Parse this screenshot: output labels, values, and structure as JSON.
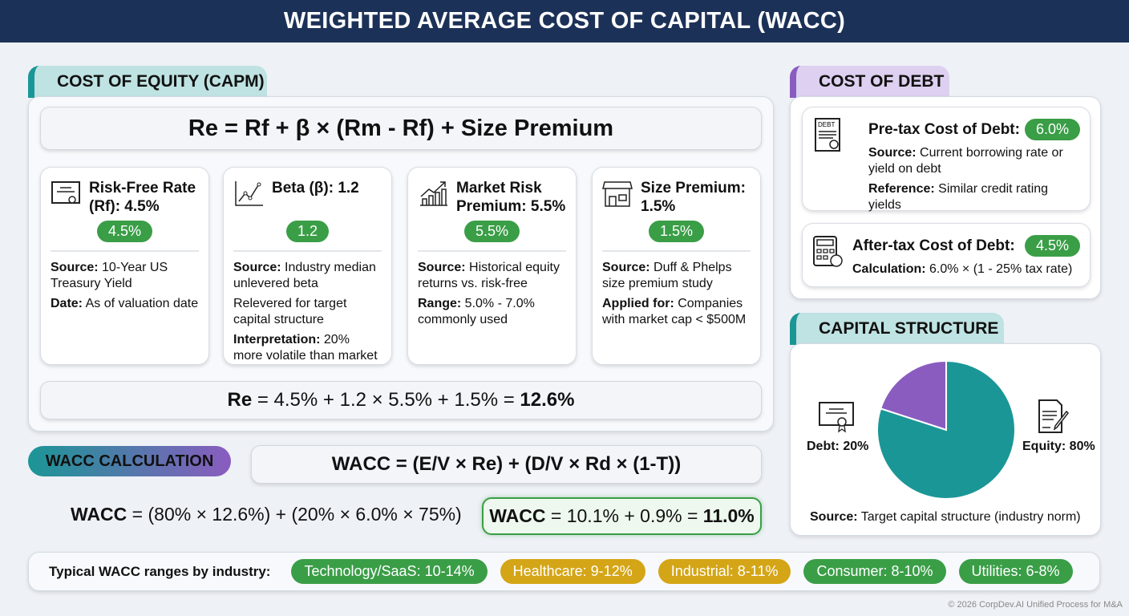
{
  "title": "WEIGHTED AVERAGE COST OF CAPITAL (WACC)",
  "equity": {
    "tab": "COST OF EQUITY (CAPM)",
    "formula": "Re = Rf + β × (Rm - Rf) + Size Premium",
    "cards": [
      {
        "icon": "certificate-icon",
        "title": "Risk-Free Rate (Rf): 4.5%",
        "badge": "4.5%",
        "lines": [
          {
            "k": "Source:",
            "v": " 10-Year US Treasury Yield"
          },
          {
            "k": "Date:",
            "v": " As of valuation date"
          }
        ]
      },
      {
        "icon": "line-chart-icon",
        "title": "Beta (β): 1.2",
        "badge": "1.2",
        "lines": [
          {
            "k": "Source:",
            "v": " Industry median unlevered beta"
          },
          {
            "k": "",
            "v": "Relevered for target capital structure"
          },
          {
            "k": "Interpretation:",
            "v": " 20% more volatile than market"
          }
        ]
      },
      {
        "icon": "growth-chart-icon",
        "title": "Market Risk Premium: 5.5%",
        "badge": "5.5%",
        "lines": [
          {
            "k": "Source:",
            "v": " Historical equity returns vs. risk-free"
          },
          {
            "k": "Range:",
            "v": " 5.0% - 7.0% commonly used"
          }
        ]
      },
      {
        "icon": "storefront-icon",
        "title": "Size Premium: 1.5%",
        "badge": "1.5%",
        "lines": [
          {
            "k": "Source:",
            "v": " Duff & Phelps size premium study"
          },
          {
            "k": "Applied for:",
            "v": " Companies with market cap < $500M"
          }
        ]
      }
    ],
    "result": {
      "k": "Re",
      "mid": " = 4.5% + 1.2 × 5.5% + 1.5% = ",
      "v": "12.6%"
    }
  },
  "wacc": {
    "tab": "WACC CALCULATION",
    "formula": "WACC = (E/V × Re) + (D/V × Rd × (1-T))",
    "calc": {
      "k": "WACC",
      "v": " = (80% × 12.6%) + (20% × 6.0% × 75%)"
    },
    "result": {
      "k": "WACC",
      "mid": " = 10.1% + 0.9% = ",
      "v": "11.0%"
    }
  },
  "debt": {
    "tab": "COST OF DEBT",
    "pretax": {
      "title": "Pre-tax Cost of Debt:",
      "badge": "6.0%",
      "icon_text": "DEBT",
      "lines": [
        {
          "k": "Source:",
          "v": " Current borrowing rate or yield on debt"
        },
        {
          "k": "Reference:",
          "v": " Similar credit rating yields"
        }
      ]
    },
    "aftertax": {
      "title": "After-tax Cost of Debt:",
      "badge": "4.5%",
      "lines": [
        {
          "k": "Calculation:",
          "v": " 6.0% × (1 - 25% tax rate)"
        }
      ]
    }
  },
  "capital": {
    "tab": "CAPITAL STRUCTURE",
    "debt_label": "Debt: 20%",
    "equity_label": "Equity: 80%",
    "source_k": "Source:",
    "source_v": " Target capital structure (industry norm)"
  },
  "chart_data": {
    "type": "pie",
    "slices": [
      {
        "label": "Debt",
        "value": 20,
        "color": "#8a5cc0"
      },
      {
        "label": "Equity",
        "value": 80,
        "color": "#1b9696"
      }
    ]
  },
  "industries": {
    "label": "Typical WACC ranges by industry:",
    "items": [
      {
        "text": "Technology/SaaS: 10-14%",
        "color": "#3a9e47"
      },
      {
        "text": "Healthcare: 9-12%",
        "color": "#d4a516"
      },
      {
        "text": "Industrial: 8-11%",
        "color": "#d4a516"
      },
      {
        "text": "Consumer: 8-10%",
        "color": "#3a9e47"
      },
      {
        "text": "Utilities: 6-8%",
        "color": "#3a9e47"
      }
    ]
  },
  "footer": "© 2026 CorpDev.AI Unified Process for M&A",
  "colors": {
    "navy": "#1c3157",
    "teal": "#1b9696",
    "purple": "#8a5cc0",
    "green": "#3a9e47",
    "gold": "#d4a516"
  }
}
